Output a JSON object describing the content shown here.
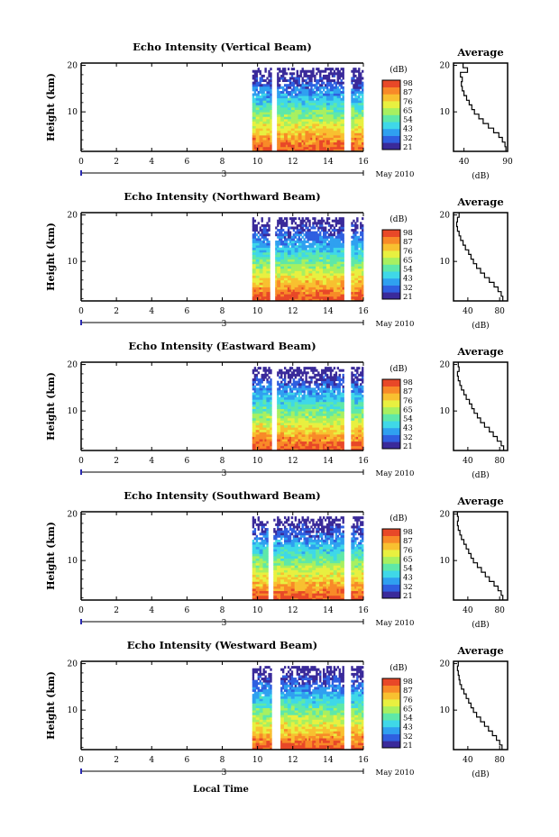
{
  "figure": {
    "x_axis_label": "Local Time",
    "date_label": "May 2010",
    "date_marker": "3"
  },
  "colors": {
    "scale": [
      "#3a2a9a",
      "#2f5fe0",
      "#2fa0f0",
      "#3fd8e8",
      "#5fe8a8",
      "#a8f060",
      "#e8f040",
      "#f8c030",
      "#f88a28",
      "#e84828"
    ]
  },
  "chart_data": [
    {
      "type": "heatmap",
      "title": "Echo Intensity (Vertical Beam)",
      "xlabel": "",
      "ylabel": "Height (km)",
      "xlim": [
        0,
        16
      ],
      "ylim": [
        1.5,
        20.5
      ],
      "x_ticks": [
        "0",
        "2",
        "4",
        "6",
        "8",
        "10",
        "12",
        "14",
        "16"
      ],
      "y_ticks": [
        "10",
        "20"
      ],
      "colorbar": {
        "label": "(dB)",
        "ticks": [
          "98",
          "87",
          "76",
          "65",
          "54",
          "43",
          "32",
          "21"
        ]
      },
      "data_gaps_hours": [
        [
          10.8,
          11.1
        ],
        [
          14.9,
          15.3
        ]
      ],
      "profile": {
        "title": "Average",
        "xlabel": "(dB)",
        "xlim": [
          28,
          90
        ],
        "x_ticks": [
          "40",
          "90"
        ],
        "y_ticks": [
          "10",
          "20"
        ],
        "points": [
          [
            88,
            2
          ],
          [
            87,
            3
          ],
          [
            84,
            4
          ],
          [
            80,
            5
          ],
          [
            74,
            6
          ],
          [
            68,
            7
          ],
          [
            62,
            8
          ],
          [
            57,
            9
          ],
          [
            52,
            10
          ],
          [
            49,
            11
          ],
          [
            46,
            12
          ],
          [
            43,
            13
          ],
          [
            40,
            14
          ],
          [
            38,
            15
          ],
          [
            37,
            16
          ],
          [
            38,
            17
          ],
          [
            36,
            18
          ],
          [
            44,
            19
          ],
          [
            39,
            20
          ]
        ]
      }
    },
    {
      "type": "heatmap",
      "title": "Echo Intensity (Northward Beam)",
      "xlabel": "",
      "ylabel": "Height (km)",
      "xlim": [
        0,
        16
      ],
      "ylim": [
        1.5,
        20.5
      ],
      "x_ticks": [
        "0",
        "2",
        "4",
        "6",
        "8",
        "10",
        "12",
        "14",
        "16"
      ],
      "y_ticks": [
        "10",
        "20"
      ],
      "colorbar": {
        "label": "(dB)",
        "ticks": [
          "98",
          "87",
          "76",
          "65",
          "54",
          "43",
          "32",
          "21"
        ]
      },
      "data_gaps_hours": [
        [
          10.7,
          11.0
        ],
        [
          14.9,
          15.3
        ]
      ],
      "profile": {
        "title": "Average",
        "xlabel": "(dB)",
        "xlim": [
          22,
          90
        ],
        "x_ticks": [
          "40",
          "80"
        ],
        "y_ticks": [
          "10",
          "20"
        ],
        "points": [
          [
            84,
            2
          ],
          [
            82,
            3
          ],
          [
            78,
            4
          ],
          [
            73,
            5
          ],
          [
            67,
            6
          ],
          [
            61,
            7
          ],
          [
            56,
            8
          ],
          [
            51,
            9
          ],
          [
            47,
            10
          ],
          [
            44,
            11
          ],
          [
            41,
            12
          ],
          [
            37,
            13
          ],
          [
            34,
            14
          ],
          [
            31,
            15
          ],
          [
            29,
            16
          ],
          [
            27,
            17
          ],
          [
            26,
            18
          ],
          [
            27,
            19
          ],
          [
            29,
            20
          ]
        ]
      }
    },
    {
      "type": "heatmap",
      "title": "Echo Intensity (Eastward Beam)",
      "xlabel": "",
      "ylabel": "Height (km)",
      "xlim": [
        0,
        16
      ],
      "ylim": [
        1.5,
        20.5
      ],
      "x_ticks": [
        "0",
        "2",
        "4",
        "6",
        "8",
        "10",
        "12",
        "14",
        "16"
      ],
      "y_ticks": [
        "10",
        "20"
      ],
      "colorbar": {
        "label": "(dB)",
        "ticks": [
          "98",
          "87",
          "76",
          "65",
          "54",
          "43",
          "32",
          "21"
        ]
      },
      "data_gaps_hours": [
        [
          10.8,
          11.1
        ],
        [
          14.9,
          15.3
        ]
      ],
      "profile": {
        "title": "Average",
        "xlabel": "(dB)",
        "xlim": [
          22,
          90
        ],
        "x_ticks": [
          "40",
          "80"
        ],
        "y_ticks": [
          "10",
          "20"
        ],
        "points": [
          [
            85,
            2
          ],
          [
            82,
            3
          ],
          [
            77,
            4
          ],
          [
            72,
            5
          ],
          [
            67,
            6
          ],
          [
            61,
            7
          ],
          [
            56,
            8
          ],
          [
            52,
            9
          ],
          [
            48,
            10
          ],
          [
            45,
            11
          ],
          [
            42,
            12
          ],
          [
            38,
            13
          ],
          [
            35,
            14
          ],
          [
            32,
            15
          ],
          [
            30,
            16
          ],
          [
            28,
            17
          ],
          [
            27,
            18
          ],
          [
            29,
            19
          ],
          [
            28,
            20
          ]
        ]
      }
    },
    {
      "type": "heatmap",
      "title": "Echo Intensity (Southward Beam)",
      "xlabel": "",
      "ylabel": "Height (km)",
      "xlim": [
        0,
        16
      ],
      "ylim": [
        1.5,
        20.5
      ],
      "x_ticks": [
        "0",
        "2",
        "4",
        "6",
        "8",
        "10",
        "12",
        "14",
        "16"
      ],
      "y_ticks": [
        "10",
        "20"
      ],
      "colorbar": {
        "label": "(dB)",
        "ticks": [
          "98",
          "87",
          "76",
          "65",
          "54",
          "43",
          "32",
          "21"
        ]
      },
      "data_gaps_hours": [
        [
          10.6,
          10.9
        ],
        [
          14.9,
          15.3
        ]
      ],
      "profile": {
        "title": "Average",
        "xlabel": "(dB)",
        "xlim": [
          22,
          90
        ],
        "x_ticks": [
          "40",
          "80"
        ],
        "y_ticks": [
          "10",
          "20"
        ],
        "points": [
          [
            84,
            2
          ],
          [
            82,
            3
          ],
          [
            78,
            4
          ],
          [
            73,
            5
          ],
          [
            67,
            6
          ],
          [
            62,
            7
          ],
          [
            57,
            8
          ],
          [
            52,
            9
          ],
          [
            47,
            10
          ],
          [
            44,
            11
          ],
          [
            41,
            12
          ],
          [
            38,
            13
          ],
          [
            35,
            14
          ],
          [
            32,
            15
          ],
          [
            30,
            16
          ],
          [
            28,
            17
          ],
          [
            27,
            18
          ],
          [
            28,
            19
          ],
          [
            27,
            20
          ]
        ]
      }
    },
    {
      "type": "heatmap",
      "title": "Echo Intensity (Westward Beam)",
      "xlabel": "",
      "ylabel": "Height (km)",
      "xlim": [
        0,
        16
      ],
      "ylim": [
        1.5,
        20.5
      ],
      "x_ticks": [
        "0",
        "2",
        "4",
        "6",
        "8",
        "10",
        "12",
        "14",
        "16"
      ],
      "y_ticks": [
        "10",
        "20"
      ],
      "colorbar": {
        "label": "(dB)",
        "ticks": [
          "98",
          "87",
          "76",
          "65",
          "54",
          "43",
          "32",
          "21"
        ]
      },
      "data_gaps_hours": [
        [
          10.8,
          11.3
        ],
        [
          14.9,
          15.3
        ]
      ],
      "profile": {
        "title": "Average",
        "xlabel": "(dB)",
        "xlim": [
          22,
          90
        ],
        "x_ticks": [
          "40",
          "80"
        ],
        "y_ticks": [
          "10",
          "20"
        ],
        "points": [
          [
            83,
            2
          ],
          [
            80,
            3
          ],
          [
            76,
            4
          ],
          [
            71,
            5
          ],
          [
            66,
            6
          ],
          [
            61,
            7
          ],
          [
            56,
            8
          ],
          [
            51,
            9
          ],
          [
            47,
            10
          ],
          [
            44,
            11
          ],
          [
            41,
            12
          ],
          [
            38,
            13
          ],
          [
            35,
            14
          ],
          [
            32,
            15
          ],
          [
            30,
            16
          ],
          [
            29,
            17
          ],
          [
            28,
            18
          ],
          [
            27,
            19
          ],
          [
            28,
            20
          ]
        ]
      }
    }
  ]
}
